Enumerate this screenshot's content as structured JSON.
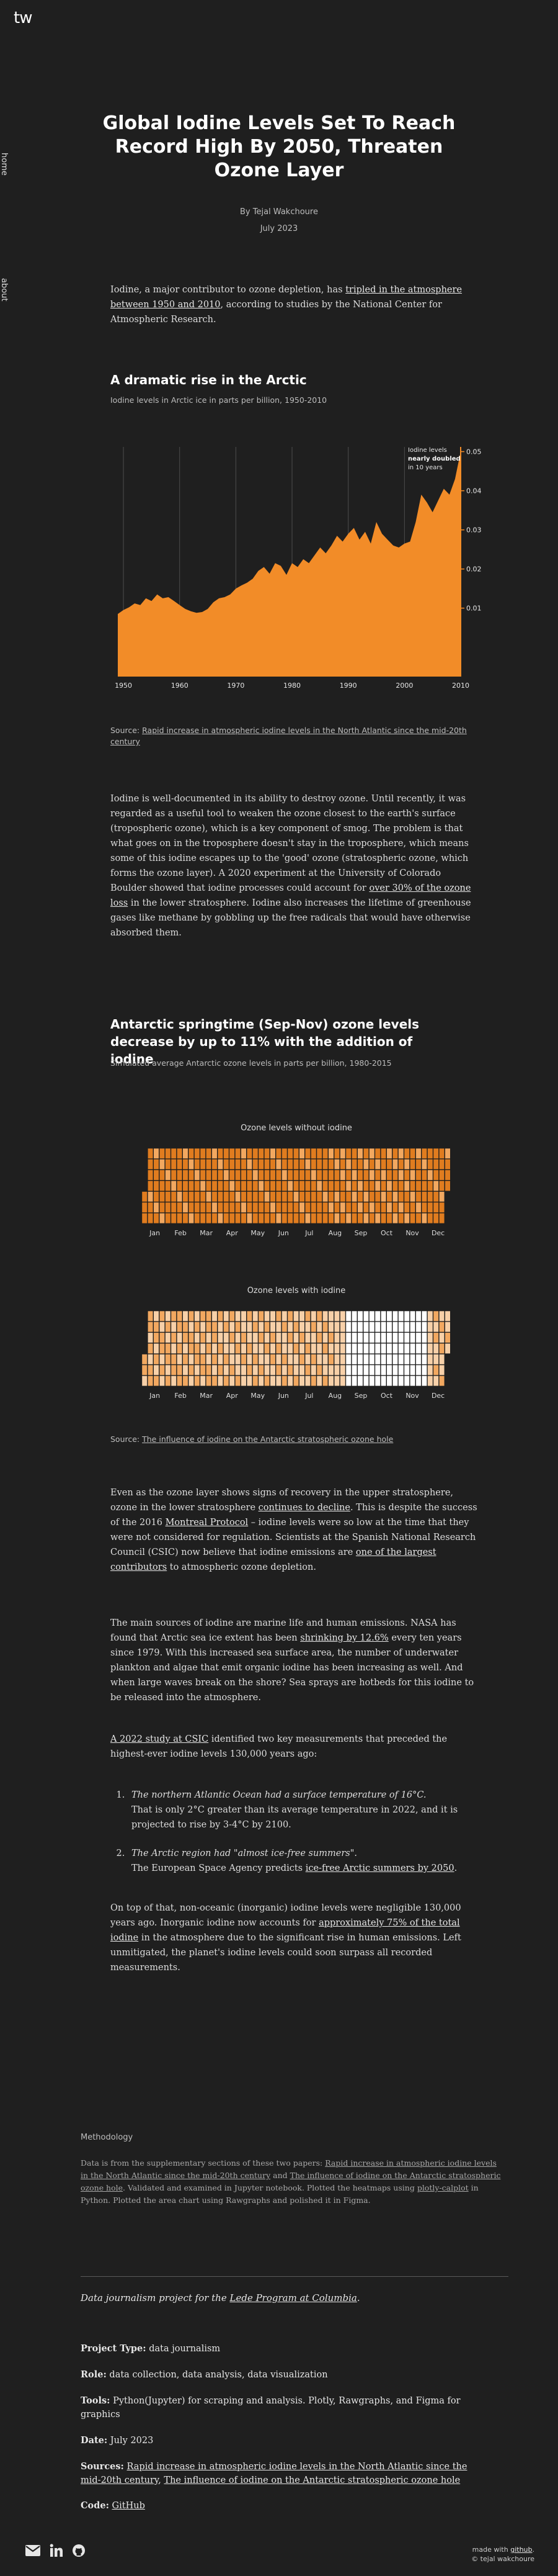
{
  "nav": {
    "logo": "tw",
    "home": "home",
    "about": "about"
  },
  "header": {
    "title": "Global Iodine Levels Set To Reach Record High By 2050, Threaten Ozone Layer",
    "author": "By Tejal Wakchoure",
    "date": "July 2023"
  },
  "intro": {
    "t1": "Iodine, a major contributor to ozone depletion, has ",
    "link": "tripled in the atmosphere between 1950 and 2010",
    "t2": ", according to studies by the National Center for Atmospheric Research."
  },
  "section1": {
    "heading": "A dramatic rise in the Arctic",
    "subheading": "Iodine levels in Arctic ice in parts per billion, 1950-2010",
    "annotation_l1": "Iodine levels",
    "annotation_l2": "nearly doubled",
    "annotation_l3": "in 10 years",
    "source_label": "Source: ",
    "source_link": "Rapid increase in atmospheric iodine levels in the North Atlantic since the mid-20th century"
  },
  "chart_data": {
    "type": "area",
    "title": "A dramatic rise in the Arctic",
    "subtitle": "Iodine levels in Arctic ice in parts per billion, 1950-2010",
    "x_ticks": [
      1950,
      1960,
      1970,
      1980,
      1990,
      2000,
      2010
    ],
    "y_ticks": [
      0.01,
      0.02,
      0.03,
      0.04,
      0.05
    ],
    "xlim": [
      1949,
      2010
    ],
    "ylim": [
      -0.0075,
      0.0512
    ],
    "annotation": "Iodine levels nearly doubled in 10 years",
    "x": [
      1949,
      1950,
      1951,
      1952,
      1953,
      1954,
      1955,
      1956,
      1957,
      1958,
      1959,
      1960,
      1961,
      1962,
      1963,
      1964,
      1965,
      1966,
      1967,
      1968,
      1969,
      1970,
      1971,
      1972,
      1973,
      1974,
      1975,
      1976,
      1977,
      1978,
      1979,
      1980,
      1981,
      1982,
      1983,
      1984,
      1985,
      1986,
      1987,
      1988,
      1989,
      1990,
      1991,
      1992,
      1993,
      1994,
      1995,
      1996,
      1997,
      1998,
      1999,
      2000,
      2001,
      2002,
      2003,
      2004,
      2005,
      2006,
      2007,
      2008,
      2009,
      2010
    ],
    "values": [
      0.0085,
      0.0095,
      0.0102,
      0.0112,
      0.0108,
      0.0125,
      0.0118,
      0.0135,
      0.0125,
      0.0128,
      0.0118,
      0.0108,
      0.0098,
      0.0092,
      0.0088,
      0.009,
      0.0098,
      0.0115,
      0.0125,
      0.0128,
      0.0135,
      0.015,
      0.0158,
      0.0165,
      0.0175,
      0.0195,
      0.0205,
      0.0188,
      0.0215,
      0.0208,
      0.0185,
      0.0215,
      0.0205,
      0.0225,
      0.0215,
      0.0235,
      0.0255,
      0.024,
      0.026,
      0.0285,
      0.027,
      0.029,
      0.0305,
      0.0275,
      0.0295,
      0.0265,
      0.032,
      0.029,
      0.0275,
      0.026,
      0.0255,
      0.0265,
      0.027,
      0.032,
      0.039,
      0.037,
      0.0345,
      0.0375,
      0.0405,
      0.039,
      0.043,
      0.05
    ],
    "color": "#f28c28"
  },
  "para2": {
    "t1": "Iodine is well-documented in its ability to destroy ozone. Until recently, it was regarded as a useful tool to weaken the ozone closest to the earth's surface (tropospheric ozone), which is a key component of smog. The problem is that what goes on in the troposphere doesn't stay in the troposphere, which means some of this iodine escapes up to the 'good' ozone (stratospheric ozone, which forms the ozone layer). A 2020 experiment at the University of Colorado Boulder showed that iodine processes could account for ",
    "link": "over 30% of the ozone loss",
    "t2": " in the lower stratosphere. Iodine also increases the lifetime of greenhouse gases like methane by gobbling up the free radicals that would have otherwise absorbed them."
  },
  "section2": {
    "heading": "Antarctic springtime (Sep-Nov) ozone levels decrease by up to 11% with the addition of iodine",
    "subheading": "Simulated average Antarctic ozone levels in parts per billion, 1980-2015",
    "heatmap1_title": "Ozone levels without iodine",
    "heatmap2_title": "Ozone levels with iodine",
    "months": [
      "Jan",
      "Feb",
      "Mar",
      "Apr",
      "May",
      "Jun",
      "Jul",
      "Aug",
      "Sep",
      "Oct",
      "Nov",
      "Dec"
    ],
    "source_label": "Source: ",
    "source_link": "The influence of iodine on the Antarctic stratospheric ozone hole",
    "heatmap_colors": {
      "dark": "#e07c1f",
      "mid": "#f2a860",
      "light": "#f7d0a8",
      "white": "#ffffff"
    }
  },
  "para3": {
    "t1": "Even as the ozone layer shows signs of recovery in the upper stratosphere, ozone in the lower stratosphere ",
    "link1": "continues to decline",
    "t2": ". This is despite the success of the 2016 ",
    "link2": "Montreal Protocol",
    "t3": " – iodine levels were so low at the time that they were not considered for regulation. Scientists at the Spanish National Research Council (CSIC) now believe that iodine emissions are ",
    "link3": "one of the largest contributors",
    "t4": " to atmospheric ozone depletion."
  },
  "para4": {
    "t1": "The main sources of iodine are marine life and human emissions. NASA has found that Arctic sea ice extent has been ",
    "link": "shrinking by 12.6%",
    "t2": " every ten years since 1979. With this increased sea surface area, the number of underwater plankton and algae that emit organic iodine has been increasing as well. And when large waves break on the shore? Sea sprays are hotbeds for this iodine to be released into the atmosphere."
  },
  "para5": {
    "link": "A 2022 study at CSIC",
    "t1": " identified two key measurements that preceded the highest-ever iodine levels 130,000 years ago:"
  },
  "list": [
    {
      "em": "The northern Atlantic Ocean had a surface temperature of 16°C.",
      "t1": "That is only 2°C greater than its average temperature in 2022, and it is projected to rise by 3-4°C by 2100.",
      "link": "",
      "t2": ""
    },
    {
      "em": "The Arctic region had \"almost ice-free summers\".",
      "t1": "The European Space Agency predicts ",
      "link": "ice-free Arctic summers by 2050",
      "t2": "."
    }
  ],
  "para6": {
    "t1": "On top of that, non-oceanic (inorganic) iodine levels were negligible 130,000 years ago. Inorganic iodine now accounts for ",
    "link": "approximately 75% of the total iodine",
    "t2": " in the atmosphere due to the significant rise in human emissions. Left unmitigated, the planet's iodine levels could soon surpass all recorded measurements."
  },
  "methodology": {
    "heading": "Methodology",
    "t1": "Data is from the supplementary sections of these two papers: ",
    "link1": "Rapid increase in atmospheric iodine levels in the North Atlantic since the mid-20th century",
    "t2": " and ",
    "link2": "The influence of iodine on the Antarctic stratospheric ozone hole",
    "t3": ". Validated and examined in Jupyter notebook. Plotted the heatmaps using ",
    "link3": "plotly-calplot",
    "t4": " in Python. Plotted the area chart using Rawgraphs and polished it in Figma."
  },
  "project": {
    "lede_t1": "Data journalism project for the ",
    "lede_link": "Lede Program at Columbia",
    "lede_t2": ".",
    "type_label": "Project Type:",
    "type_value": " data journalism",
    "role_label": "Role:",
    "role_value": " data collection, data analysis, data visualization",
    "tools_label": "Tools:",
    "tools_value": " Python(Jupyter) for scraping and analysis. Plotly, Rawgraphs, and Figma for graphics",
    "date_label": "Date:",
    "date_value": " July 2023",
    "sources_label": "Sources:",
    "source1": "Rapid increase in atmospheric iodine levels in the North Atlantic since the mid-20th century",
    "sources_sep": ", ",
    "source2": "The influence of iodine on the Antarctic stratospheric ozone hole",
    "code_label": "Code:",
    "code_link": "GitHub"
  },
  "footer": {
    "made_with": "made with ",
    "made_link": "github",
    "made_end": ".",
    "copyright": "© tejal wakchoure",
    "icons": [
      "mail-icon",
      "linkedin-icon",
      "github-icon"
    ]
  }
}
